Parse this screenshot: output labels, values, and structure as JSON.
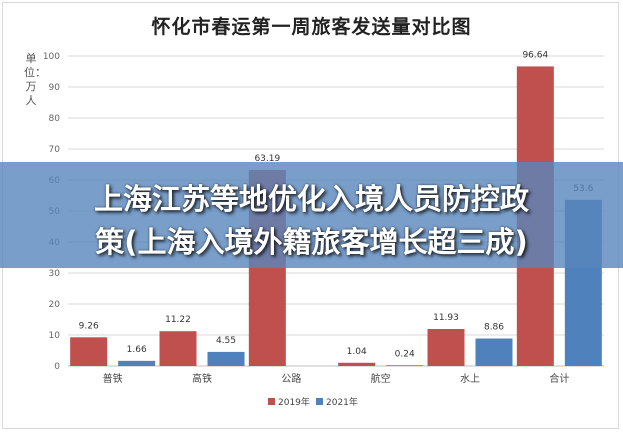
{
  "title": "怀化市春运第一周旅客发送量对比图",
  "unit_label": "单位：万人",
  "banner": {
    "line1": "上海江苏等地优化入境人员防控政",
    "line2": "策(上海入境外籍旅客增长超三成)"
  },
  "colors": {
    "series_2019": "#c0504d",
    "series_2021": "#4f81bd",
    "grid": "#d9d9d9",
    "banner": "#5886bc"
  },
  "chart_data": {
    "type": "bar",
    "title": "怀化市春运第一周旅客发送量对比图",
    "ylabel": "单位：万人",
    "xlabel": "",
    "categories": [
      "普铁",
      "高铁",
      "公路",
      "航空",
      "水上",
      "合计"
    ],
    "series": [
      {
        "name": "2019年",
        "color": "#c0504d",
        "values": [
          9.26,
          11.22,
          63.19,
          1.04,
          11.93,
          96.64
        ]
      },
      {
        "name": "2021年",
        "color": "#4f81bd",
        "values": [
          1.66,
          4.55,
          null,
          0.24,
          8.86,
          53.6
        ]
      }
    ],
    "data_labels": [
      [
        "9.26",
        "11.22",
        "63.19",
        "1.04",
        "11.93",
        "96.64"
      ],
      [
        "1.66",
        "4.55",
        "",
        "0.24",
        "8.86",
        "53.6"
      ]
    ],
    "ylim": [
      0,
      100
    ],
    "yticks": [
      0,
      10,
      20,
      30,
      40,
      50,
      60,
      70,
      80,
      90,
      100
    ],
    "grid": true,
    "legend_position": "bottom"
  }
}
